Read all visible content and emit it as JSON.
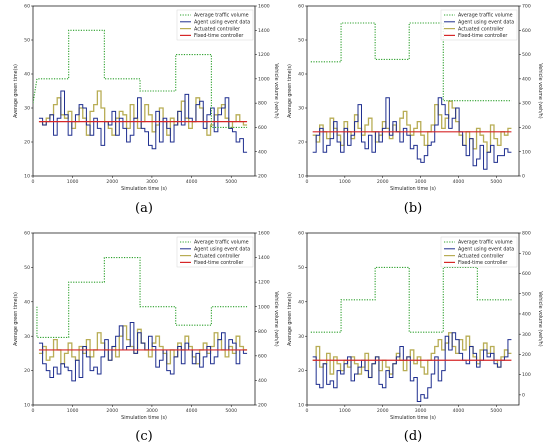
{
  "chart_data": [
    {
      "id": "a",
      "caption": "(a)",
      "type": "line",
      "xlabel": "Simulation time (s)",
      "ylabel": "Average green time(s)",
      "y2label": "Vehicle volume (veh/h)",
      "xlim": [
        0,
        5600
      ],
      "ylim": [
        10,
        60
      ],
      "y2lim": [
        200,
        1600
      ],
      "xticks": [
        0,
        1000,
        2000,
        3000,
        4000,
        5000
      ],
      "yticks": [
        10,
        20,
        30,
        40,
        50,
        60
      ],
      "y2ticks": [
        200,
        400,
        600,
        800,
        1000,
        1200,
        1400,
        1600
      ],
      "legend": [
        "Average traffic volume",
        "Agent using event data",
        "Actuated controller",
        "Fixed-time controller"
      ],
      "traffic_volume": [
        [
          0,
          800
        ],
        [
          100,
          1000
        ],
        [
          900,
          1000
        ],
        [
          900,
          1400
        ],
        [
          1800,
          1400
        ],
        [
          1800,
          1000
        ],
        [
          2700,
          1000
        ],
        [
          2700,
          900
        ],
        [
          3600,
          900
        ],
        [
          3600,
          1200
        ],
        [
          4500,
          1200
        ],
        [
          4500,
          600
        ],
        [
          5400,
          600
        ]
      ],
      "fixed_time": 26,
      "agent_event": [
        27,
        25,
        26,
        28,
        22,
        27,
        35,
        28,
        22,
        26,
        28,
        31,
        30,
        25,
        22,
        27,
        24,
        19,
        26,
        25,
        29,
        22,
        27,
        24,
        20,
        22,
        27,
        33,
        24,
        23,
        19,
        18,
        29,
        20,
        27,
        24,
        20,
        25,
        29,
        25,
        34,
        27,
        26,
        31,
        32,
        24,
        28,
        30,
        23,
        28,
        30,
        33,
        24,
        23,
        20,
        21,
        17
      ],
      "actuated": [
        26,
        25,
        27,
        28,
        31,
        33,
        28,
        27,
        29,
        24,
        26,
        30,
        27,
        22,
        29,
        31,
        35,
        30,
        26,
        24,
        22,
        27,
        29,
        28,
        24,
        31,
        27,
        24,
        26,
        31,
        28,
        23,
        25,
        30,
        26,
        22,
        27,
        25,
        29,
        32,
        27,
        24,
        26,
        33,
        30,
        26,
        22,
        25,
        28,
        30,
        31,
        27,
        24,
        26,
        28,
        26,
        25
      ]
    },
    {
      "id": "b",
      "caption": "(b)",
      "type": "line",
      "xlabel": "Simulation time (s)",
      "ylabel": "Average green time(s)",
      "y2label": "Vehicle volume (veh/h)",
      "xlim": [
        0,
        5600
      ],
      "ylim": [
        10,
        60
      ],
      "y2lim": [
        0,
        700
      ],
      "xticks": [
        0,
        1000,
        2000,
        3000,
        4000,
        5000
      ],
      "yticks": [
        10,
        20,
        30,
        40,
        50,
        60
      ],
      "y2ticks": [
        0,
        100,
        200,
        300,
        400,
        500,
        600,
        700
      ],
      "legend": [
        "Average traffic volume",
        "Agent using event data",
        "Actuated controller",
        "Fixed-time controller"
      ],
      "traffic_volume": [
        [
          100,
          470
        ],
        [
          100,
          470
        ],
        [
          900,
          470
        ],
        [
          900,
          630
        ],
        [
          1800,
          630
        ],
        [
          1800,
          480
        ],
        [
          2700,
          480
        ],
        [
          2700,
          630
        ],
        [
          3600,
          630
        ],
        [
          3600,
          310
        ],
        [
          5400,
          310
        ]
      ],
      "fixed_time": 23,
      "agent_event": [
        17,
        22,
        24,
        17,
        19,
        21,
        26,
        20,
        17,
        24,
        19,
        22,
        26,
        31,
        20,
        18,
        22,
        17,
        23,
        20,
        24,
        33,
        22,
        26,
        23,
        20,
        24,
        22,
        18,
        19,
        15,
        14,
        16,
        19,
        20,
        25,
        33,
        31,
        28,
        24,
        27,
        30,
        23,
        19,
        16,
        21,
        13,
        15,
        19,
        12,
        17,
        19,
        14,
        16,
        16,
        18,
        17
      ],
      "actuated": [
        22,
        20,
        25,
        23,
        21,
        27,
        24,
        22,
        19,
        26,
        23,
        21,
        28,
        24,
        22,
        25,
        27,
        23,
        20,
        22,
        26,
        24,
        21,
        25,
        23,
        27,
        29,
        25,
        22,
        24,
        26,
        22,
        19,
        23,
        25,
        31,
        28,
        24,
        27,
        32,
        30,
        26,
        22,
        19,
        23,
        21,
        18,
        24,
        22,
        20,
        17,
        25,
        21,
        19,
        23,
        22,
        24
      ]
    },
    {
      "id": "c",
      "caption": "(c)",
      "type": "line",
      "xlabel": "Simulation time (s)",
      "ylabel": "Average green time(s)",
      "y2label": "Vehicle volume (veh/h)",
      "xlim": [
        0,
        5600
      ],
      "ylim": [
        10,
        60
      ],
      "y2lim": [
        200,
        1600
      ],
      "xticks": [
        0,
        1000,
        2000,
        3000,
        4000,
        5000
      ],
      "yticks": [
        10,
        20,
        30,
        40,
        50,
        60
      ],
      "y2ticks": [
        200,
        400,
        600,
        800,
        1000,
        1200,
        1400,
        1600
      ],
      "legend": [
        "Average traffic volume",
        "Agent using event data",
        "Actuated controller",
        "Fixed-time controller"
      ],
      "traffic_volume": [
        [
          100,
          1000
        ],
        [
          100,
          750
        ],
        [
          900,
          750
        ],
        [
          900,
          1200
        ],
        [
          1800,
          1200
        ],
        [
          1800,
          1400
        ],
        [
          2700,
          1400
        ],
        [
          2700,
          1000
        ],
        [
          3600,
          1000
        ],
        [
          3600,
          850
        ],
        [
          4500,
          850
        ],
        [
          4500,
          1000
        ],
        [
          5400,
          1000
        ]
      ],
      "fixed_time": 26,
      "agent_event": [
        28,
        22,
        20,
        18,
        21,
        19,
        22,
        21,
        20,
        17,
        23,
        18,
        27,
        24,
        20,
        21,
        19,
        24,
        29,
        23,
        27,
        30,
        33,
        26,
        27,
        34,
        25,
        31,
        28,
        26,
        30,
        27,
        21,
        23,
        26,
        20,
        19,
        24,
        27,
        22,
        28,
        26,
        22,
        25,
        21,
        24,
        27,
        22,
        24,
        29,
        31,
        26,
        29,
        28,
        22,
        26,
        25
      ],
      "actuated": [
        25,
        27,
        23,
        24,
        29,
        26,
        22,
        25,
        28,
        24,
        23,
        27,
        25,
        29,
        24,
        26,
        31,
        28,
        26,
        23,
        27,
        24,
        30,
        33,
        29,
        27,
        25,
        32,
        28,
        26,
        24,
        28,
        30,
        27,
        25,
        22,
        26,
        24,
        28,
        26,
        30,
        27,
        24,
        22,
        26,
        28,
        25,
        27,
        31,
        29,
        26,
        24,
        27,
        25,
        30,
        27,
        26
      ]
    },
    {
      "id": "d",
      "caption": "(d)",
      "type": "line",
      "xlabel": "Simulation time (s)",
      "ylabel": "Average green time(s)",
      "y2label": "Vehicle volume (veh/h)",
      "xlim": [
        0,
        5600
      ],
      "ylim": [
        10,
        60
      ],
      "y2lim": [
        -50,
        800
      ],
      "xticks": [
        0,
        1000,
        2000,
        3000,
        4000,
        5000
      ],
      "yticks": [
        10,
        20,
        30,
        40,
        50,
        60
      ],
      "y2ticks": [
        0,
        100,
        200,
        300,
        400,
        500,
        600,
        700,
        800
      ],
      "legend": [
        "Average traffic volume",
        "Agent using event data",
        "Actuated controller",
        "Fixed-time controller"
      ],
      "traffic_volume": [
        [
          100,
          310
        ],
        [
          100,
          310
        ],
        [
          900,
          310
        ],
        [
          900,
          470
        ],
        [
          1800,
          470
        ],
        [
          1800,
          630
        ],
        [
          2700,
          630
        ],
        [
          2700,
          310
        ],
        [
          3600,
          310
        ],
        [
          3600,
          630
        ],
        [
          4500,
          630
        ],
        [
          4500,
          470
        ],
        [
          5400,
          470
        ]
      ],
      "fixed_time": 23,
      "agent_event": [
        24,
        16,
        15,
        22,
        16,
        17,
        15,
        20,
        19,
        22,
        24,
        17,
        19,
        21,
        23,
        20,
        18,
        22,
        24,
        16,
        15,
        20,
        18,
        22,
        24,
        27,
        23,
        24,
        17,
        18,
        11,
        13,
        12,
        15,
        19,
        24,
        17,
        20,
        30,
        26,
        31,
        29,
        25,
        23,
        22,
        27,
        25,
        21,
        23,
        26,
        24,
        25,
        22,
        21,
        23,
        24,
        29
      ],
      "actuated": [
        23,
        27,
        21,
        22,
        25,
        19,
        24,
        22,
        20,
        23,
        21,
        24,
        22,
        19,
        21,
        25,
        18,
        22,
        24,
        20,
        23,
        21,
        19,
        22,
        25,
        23,
        20,
        24,
        26,
        22,
        24,
        21,
        19,
        23,
        25,
        27,
        29,
        26,
        28,
        31,
        27,
        25,
        29,
        26,
        30,
        27,
        24,
        22,
        26,
        28,
        25,
        27,
        23,
        21,
        24,
        26,
        25
      ]
    }
  ]
}
